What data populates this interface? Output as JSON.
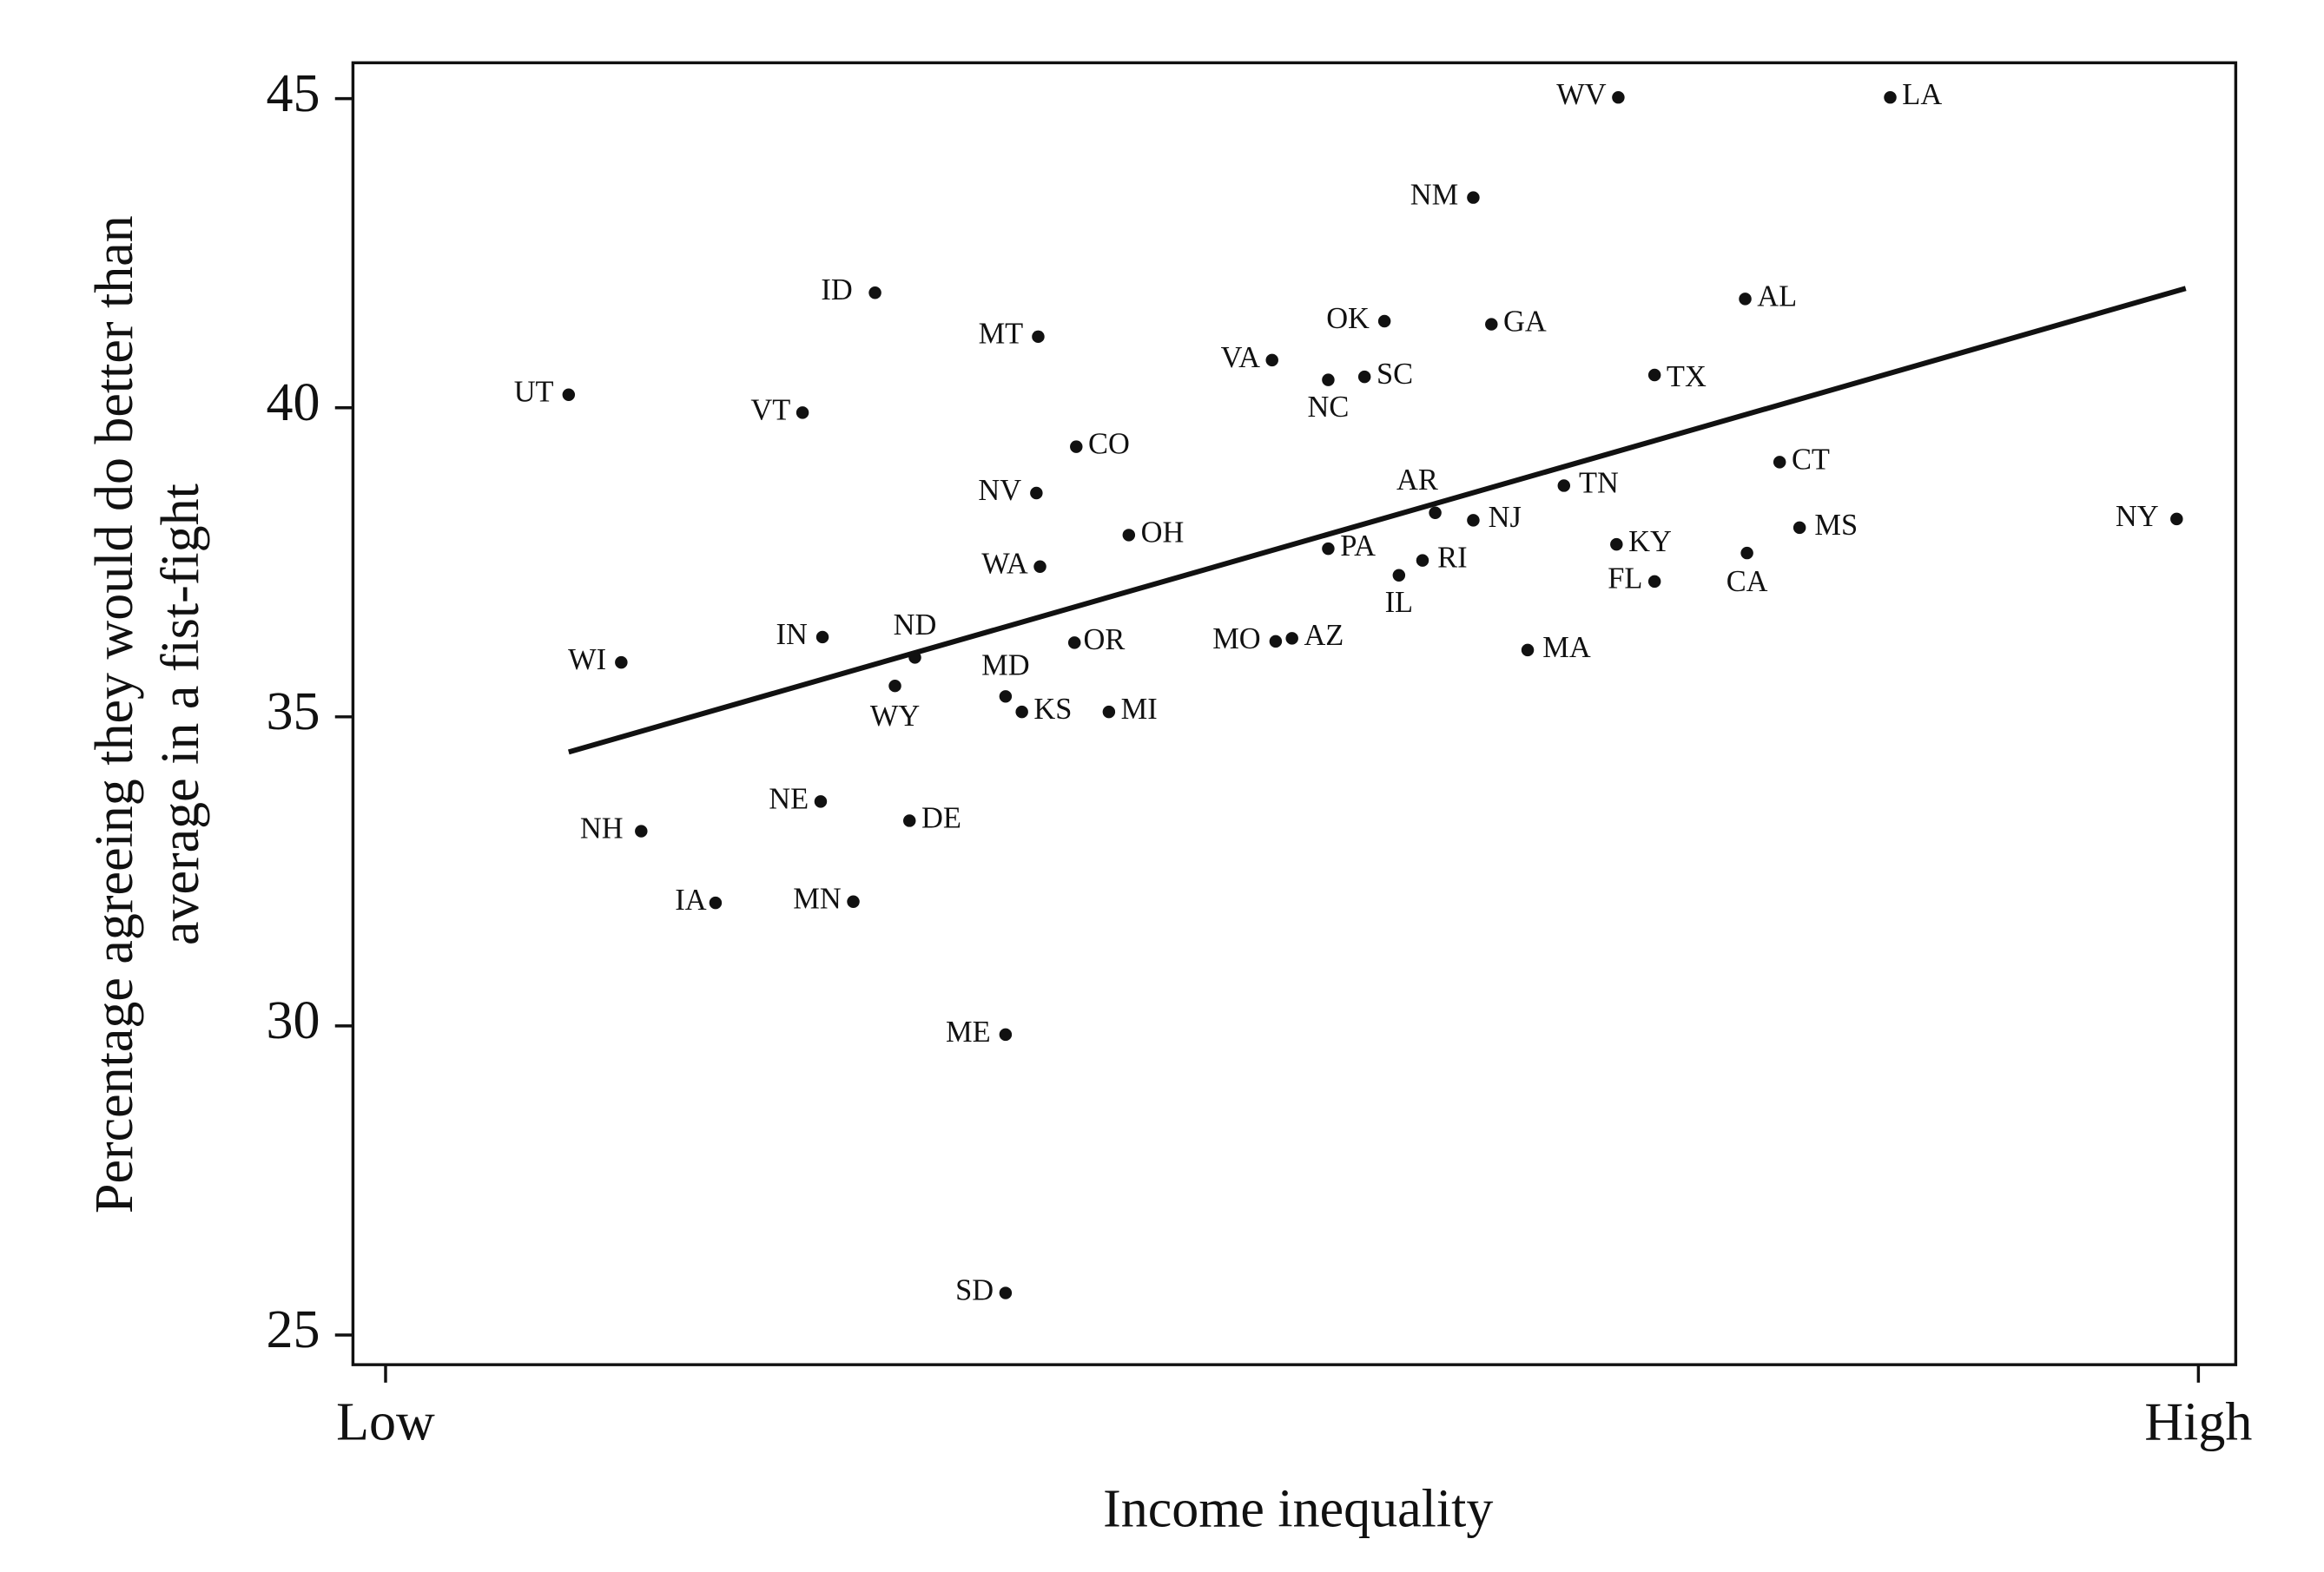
{
  "chart_data": {
    "type": "scatter",
    "x_label": "Income inequality",
    "y_label": [
      "Percentage agreeing they would do better than",
      "average in a fist-fight"
    ],
    "point_labels": [
      "WV",
      "LA",
      "NM",
      "ID",
      "MT",
      "OK",
      "GA",
      "AL",
      "VA",
      "NC",
      "SC",
      "TX",
      "UT",
      "VT",
      "CO",
      "CT",
      "NV",
      "TN",
      "AR",
      "NJ",
      "NY",
      "MS",
      "OH",
      "KY",
      "PA",
      "CA",
      "RI",
      "WA",
      "IL",
      "FL",
      "IN",
      "MO",
      "AZ",
      "OR",
      "WI",
      "ND",
      "MA",
      "WY",
      "MD",
      "KS",
      "MI",
      "NE",
      "DE",
      "NH",
      "IA",
      "MN",
      "ME",
      "SD"
    ],
    "x": [
      0.68,
      0.83,
      0.6,
      0.27,
      0.36,
      0.551,
      0.61,
      0.75,
      0.489,
      0.52,
      0.54,
      0.7,
      0.101,
      0.23,
      0.381,
      0.769,
      0.359,
      0.65,
      0.579,
      0.6,
      0.988,
      0.78,
      0.41,
      0.679,
      0.52,
      0.751,
      0.572,
      0.361,
      0.559,
      0.7,
      0.241,
      0.491,
      0.5,
      0.38,
      0.13,
      0.292,
      0.63,
      0.281,
      0.342,
      0.351,
      0.399,
      0.24,
      0.289,
      0.141,
      0.182,
      0.258,
      0.342,
      0.342
    ],
    "values": [
      45.02,
      45.02,
      43.4,
      41.86,
      41.15,
      41.4,
      41.35,
      41.76,
      40.77,
      40.45,
      40.5,
      40.53,
      40.21,
      39.92,
      39.37,
      39.12,
      38.62,
      38.74,
      38.3,
      38.18,
      38.2,
      38.06,
      37.94,
      37.79,
      37.72,
      37.65,
      37.53,
      37.43,
      37.29,
      37.19,
      36.29,
      36.22,
      36.27,
      36.2,
      35.88,
      35.96,
      36.08,
      35.5,
      35.33,
      35.08,
      35.08,
      33.63,
      33.32,
      33.15,
      31.99,
      32.01,
      29.86,
      25.68
    ],
    "color": "#111111",
    "fit_line": {
      "x": [
        0.101,
        0.993
      ],
      "y": [
        34.43,
        41.93
      ]
    },
    "xlim": [
      -0.018,
      1.0206
    ],
    "xticks": [
      {
        "value": 0,
        "label": "Low"
      },
      {
        "value": 1,
        "label": "High"
      }
    ],
    "ylim": [
      24.52,
      45.58
    ],
    "yticks": [
      25,
      30,
      35,
      40,
      45
    ]
  }
}
